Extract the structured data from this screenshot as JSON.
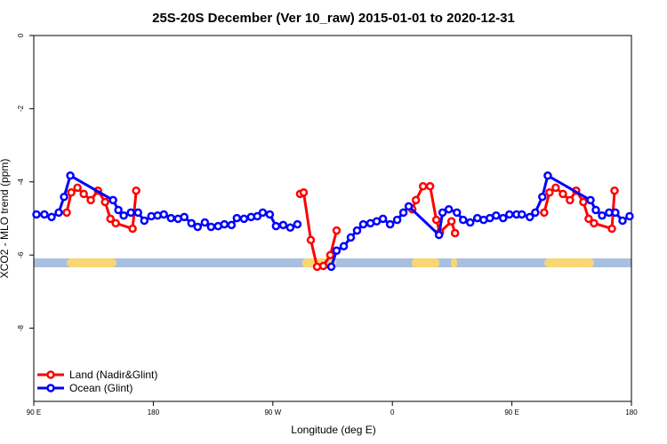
{
  "chart_data": {
    "type": "line",
    "title": "25S-20S December (Ver 10_raw)   2015-01-01 to 2020-12-31",
    "xlabel": "Longitude (deg E)",
    "ylabel": "XCO2 - MLO trend (ppm)",
    "xlim": [
      90,
      540
    ],
    "xticks": [
      {
        "value": 90,
        "label": "90 E"
      },
      180,
      {
        "value": 270,
        "label": "90 W"
      },
      {
        "value": 360,
        "label": "0"
      },
      {
        "value": 450,
        "label": "90 E"
      },
      {
        "value": 540,
        "label": "180"
      }
    ],
    "ylim": [
      -10,
      0
    ],
    "yticks": [
      0,
      -2,
      -4,
      -6,
      -8
    ],
    "legend": "bottom-left",
    "series": [
      {
        "name": "Land (Nadir&Glint)",
        "color": "#ff0000",
        "x": [
          114.8,
          118.2,
          122.9,
          127.6,
          132.9,
          138.3,
          143.7,
          147.7,
          151.7,
          164.4,
          167.1,
          null,
          290.5,
          293.2,
          298.6,
          303.3,
          308.0,
          313.3,
          318.0,
          null,
          375.0,
          377.7,
          383.1,
          388.4,
          393.1,
          395.8,
          404.5,
          407.2,
          null,
          474.3,
          478.3,
          483.0,
          488.4,
          493.7,
          498.4,
          503.8,
          507.8,
          511.8,
          525.3,
          527.3
        ],
        "values": [
          -4.84,
          -4.29,
          -4.16,
          -4.33,
          -4.5,
          -4.24,
          -4.55,
          -5.01,
          -5.13,
          -5.28,
          -4.24,
          null,
          -4.33,
          -4.29,
          -5.59,
          -6.32,
          -6.3,
          -6.0,
          -5.33,
          null,
          -4.75,
          -4.5,
          -4.12,
          -4.12,
          -5.04,
          -5.38,
          -5.08,
          -5.4,
          null,
          -4.84,
          -4.29,
          -4.16,
          -4.33,
          -4.5,
          -4.24,
          -4.55,
          -5.01,
          -5.13,
          -5.28,
          -4.24
        ]
      },
      {
        "name": "Ocean (Glint)",
        "color": "#0000ff",
        "x": [
          92.0,
          98.0,
          103.4,
          108.8,
          112.8,
          117.5,
          149.7,
          153.7,
          157.7,
          163.1,
          168.5,
          173.2,
          178.5,
          183.2,
          187.9,
          193.3,
          198.6,
          203.3,
          208.7,
          213.4,
          218.8,
          223.5,
          228.8,
          233.5,
          238.9,
          242.9,
          248.3,
          253.6,
          258.3,
          262.4,
          267.7,
          272.4,
          277.8,
          283.1,
          288.5,
          null,
          314.0,
          318.0,
          323.4,
          328.7,
          333.4,
          338.1,
          343.5,
          348.2,
          352.9,
          358.3,
          363.6,
          368.3,
          372.3,
          395.1,
          397.8,
          402.5,
          408.6,
          413.3,
          418.6,
          424.0,
          428.7,
          433.4,
          438.1,
          443.4,
          448.1,
          453.5,
          457.5,
          463.5,
          467.6,
          472.9,
          477.0,
          509.2,
          513.2,
          517.9,
          523.2,
          527.9,
          533.3,
          538.6
        ],
        "values": [
          -4.89,
          -4.89,
          -4.96,
          -4.84,
          -4.41,
          -3.83,
          -4.5,
          -4.77,
          -4.92,
          -4.84,
          -4.84,
          -5.06,
          -4.94,
          -4.92,
          -4.89,
          -4.99,
          -5.01,
          -4.96,
          -5.13,
          -5.23,
          -5.11,
          -5.23,
          -5.21,
          -5.16,
          -5.18,
          -4.99,
          -5.01,
          -4.96,
          -4.94,
          -4.84,
          -4.89,
          -5.21,
          -5.18,
          -5.25,
          -5.16,
          null,
          -6.32,
          -5.88,
          -5.76,
          -5.52,
          -5.33,
          -5.16,
          -5.13,
          -5.08,
          -5.01,
          -5.16,
          -5.04,
          -4.84,
          -4.67,
          -5.45,
          -4.84,
          -4.75,
          -4.84,
          -5.04,
          -5.11,
          -4.99,
          -5.04,
          -4.99,
          -4.92,
          -4.99,
          -4.89,
          -4.89,
          -4.89,
          -4.96,
          -4.84,
          -4.41,
          -3.83,
          -4.5,
          -4.77,
          -4.92,
          -4.84,
          -4.84,
          -5.06,
          -4.94
        ]
      }
    ]
  }
}
